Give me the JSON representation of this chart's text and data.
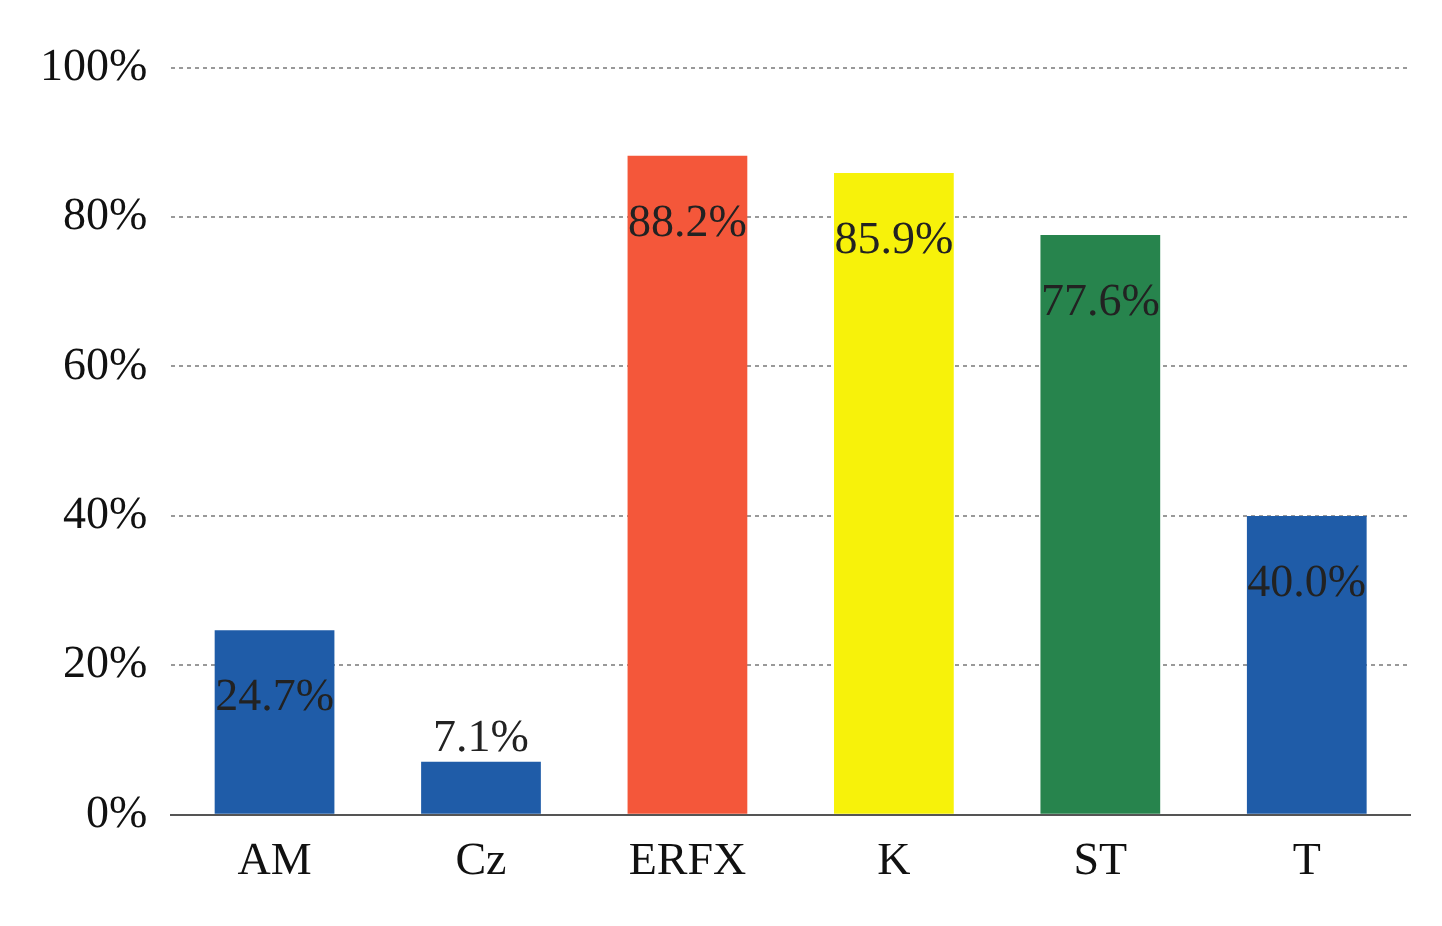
{
  "chart_data": {
    "type": "bar",
    "categories": [
      "AM",
      "Cz",
      "ERFX",
      "K",
      "ST",
      "T"
    ],
    "values": [
      24.7,
      7.1,
      88.2,
      85.9,
      77.6,
      40.0
    ],
    "colors": [
      "#1f5ca8",
      "#1f5ca8",
      "#f4573a",
      "#f7f20a",
      "#27844d",
      "#1f5ca8"
    ],
    "value_labels": [
      "24.7%",
      "7.1%",
      "88.2%",
      "85.9%",
      "77.6%",
      "40.0%"
    ],
    "ylim": [
      0,
      100
    ],
    "yticks": [
      {
        "value": 0,
        "label": "0%"
      },
      {
        "value": 20,
        "label": "20%"
      },
      {
        "value": 40,
        "label": "40%"
      },
      {
        "value": 60,
        "label": "60%"
      },
      {
        "value": 80,
        "label": "80%"
      },
      {
        "value": 100,
        "label": "100%"
      }
    ],
    "grid": "y"
  }
}
